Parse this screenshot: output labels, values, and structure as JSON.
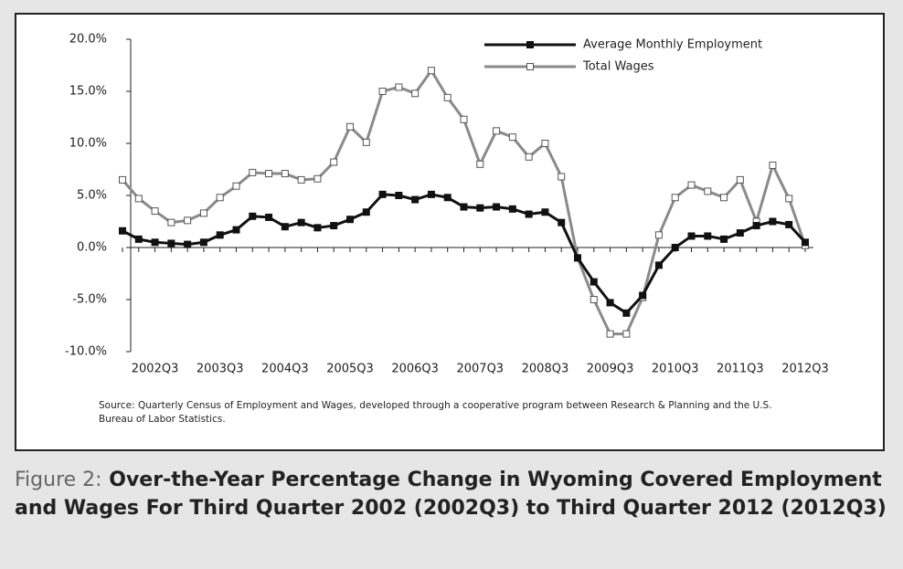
{
  "chart_data": {
    "type": "line",
    "categories": [
      null,
      null,
      "2002Q3",
      null,
      null,
      null,
      "2003Q3",
      null,
      null,
      null,
      "2004Q3",
      null,
      null,
      null,
      "2005Q3",
      null,
      null,
      null,
      "2006Q3",
      null,
      null,
      null,
      "2007Q3",
      null,
      null,
      null,
      "2008Q3",
      null,
      null,
      null,
      "2009Q3",
      null,
      null,
      null,
      "2010Q3",
      null,
      null,
      null,
      "2011Q3",
      null,
      null,
      null,
      "2012Q3"
    ],
    "series": [
      {
        "name": "Average Monthly Employment",
        "color": "#111111",
        "values": [
          1.6,
          0.8,
          0.5,
          0.4,
          0.3,
          0.5,
          1.2,
          1.7,
          3.0,
          2.9,
          2.0,
          2.4,
          1.9,
          2.1,
          2.7,
          3.4,
          5.1,
          5.0,
          4.6,
          5.1,
          4.8,
          3.9,
          3.8,
          3.9,
          3.7,
          3.2,
          3.4,
          2.4,
          -1.0,
          -3.3,
          -5.3,
          -6.3,
          -4.6,
          -1.7,
          0.0,
          1.1,
          1.1,
          0.8,
          1.4,
          2.1,
          2.5,
          2.2,
          0.5
        ]
      },
      {
        "name": "Total Wages",
        "color": "#8a8a8a",
        "values": [
          6.5,
          4.7,
          3.5,
          2.4,
          2.6,
          3.3,
          4.8,
          5.9,
          7.2,
          7.1,
          7.1,
          6.5,
          6.6,
          8.2,
          11.6,
          10.1,
          15.0,
          15.4,
          14.8,
          17.0,
          14.4,
          12.3,
          8.0,
          11.2,
          10.6,
          8.7,
          10.0,
          6.8,
          -1.0,
          -5.0,
          -8.3,
          -8.3,
          -4.8,
          1.2,
          4.8,
          6.0,
          5.4,
          4.8,
          6.5,
          2.5,
          7.9,
          4.7,
          0.2
        ]
      }
    ],
    "ylim": [
      -10,
      20
    ],
    "yticks": [
      {
        "value": 20,
        "label": "20.0%"
      },
      {
        "value": 15,
        "label": "15.0%"
      },
      {
        "value": 10,
        "label": "10.0%"
      },
      {
        "value": 5,
        "label": "5.0%"
      },
      {
        "value": 0,
        "label": "0.0%"
      },
      {
        "value": -5,
        "label": "-5.0%"
      },
      {
        "value": -10,
        "label": "-10.0%"
      }
    ],
    "source": "Source: Quarterly Census of Employment and Wages, developed through a cooperative program between Research & Planning and the U.S. Bureau of Labor Statistics.",
    "figure_label": "Figure 2:",
    "title": "Over-the-Year Percentage Change in Wyoming Covered Employment and Wages For Third Quarter 2002 (2002Q3) to Third Quarter 2012 (2012Q3)"
  }
}
